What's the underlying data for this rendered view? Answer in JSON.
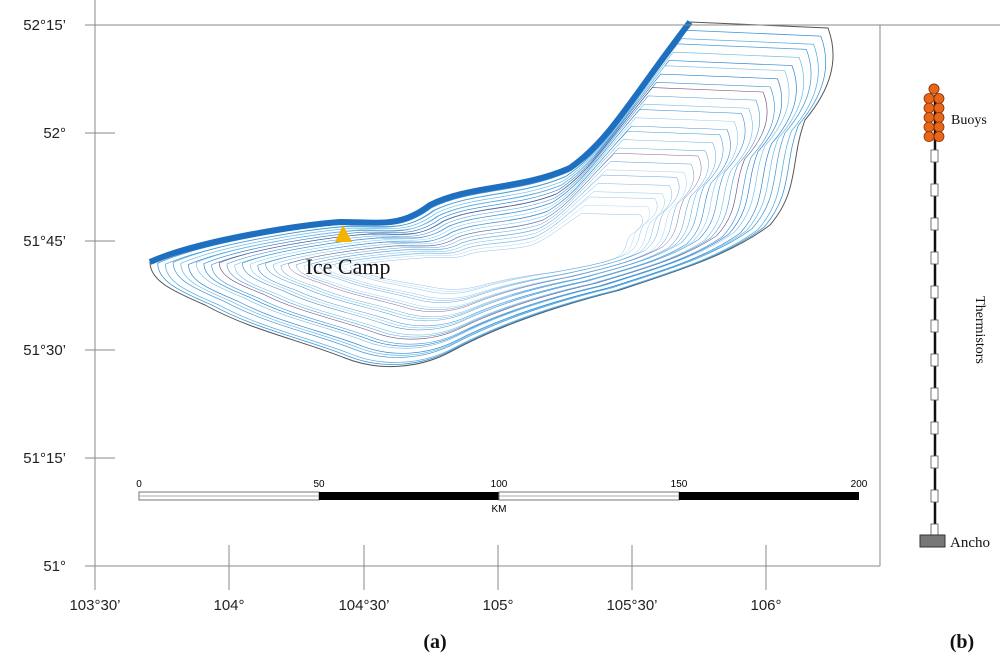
{
  "map": {
    "lat_labels": [
      "52°15’",
      "52°",
      "51°45’",
      "51°30’",
      "51°15’",
      "51°"
    ],
    "lon_labels": [
      "103°30’",
      "104°",
      "104°30’",
      "105°",
      "105°30’",
      "106°"
    ],
    "site_label": "Ice Camp",
    "scale": {
      "ticks": [
        "0",
        "50",
        "100",
        "150",
        "200"
      ],
      "unit": "KM"
    },
    "panel_label": "(a)"
  },
  "mooring": {
    "buoys": "Buoys",
    "thermistors": "Thermistors",
    "anchor": "Ancho",
    "panel_label": "(b)"
  }
}
